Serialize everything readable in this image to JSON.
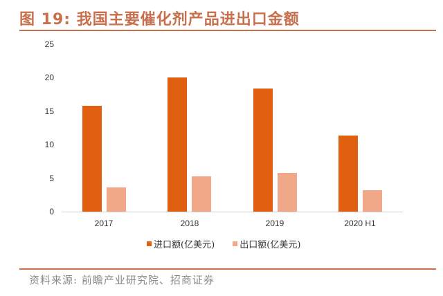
{
  "header": {
    "title": "图 19:  我国主要催化剂产品进出口金额"
  },
  "footer": {
    "source": "资料来源:  前瞻产业研究院、招商证券"
  },
  "colors": {
    "title": "#C8704E",
    "import": "#E06010",
    "export": "#F0A888",
    "axis": "#D0D0D0"
  },
  "chart_data": {
    "type": "bar",
    "title": "我国主要催化剂产品进出口金额",
    "xlabel": "",
    "ylabel": "",
    "categories": [
      "2017",
      "2018",
      "2019",
      "2020 H1"
    ],
    "series": [
      {
        "name": "进口额(亿美元)",
        "values": [
          15.8,
          20.0,
          18.3,
          11.3
        ]
      },
      {
        "name": "出口额(亿美元)",
        "values": [
          3.6,
          5.3,
          5.8,
          3.2
        ]
      }
    ],
    "ylim": [
      0,
      25
    ],
    "yticks": [
      "0",
      "5",
      "10",
      "15",
      "20",
      "25"
    ],
    "grid": false,
    "legend_position": "bottom"
  },
  "legend": {
    "items": [
      {
        "label": "进口额(亿美元)"
      },
      {
        "label": "出口额(亿美元)"
      }
    ]
  }
}
